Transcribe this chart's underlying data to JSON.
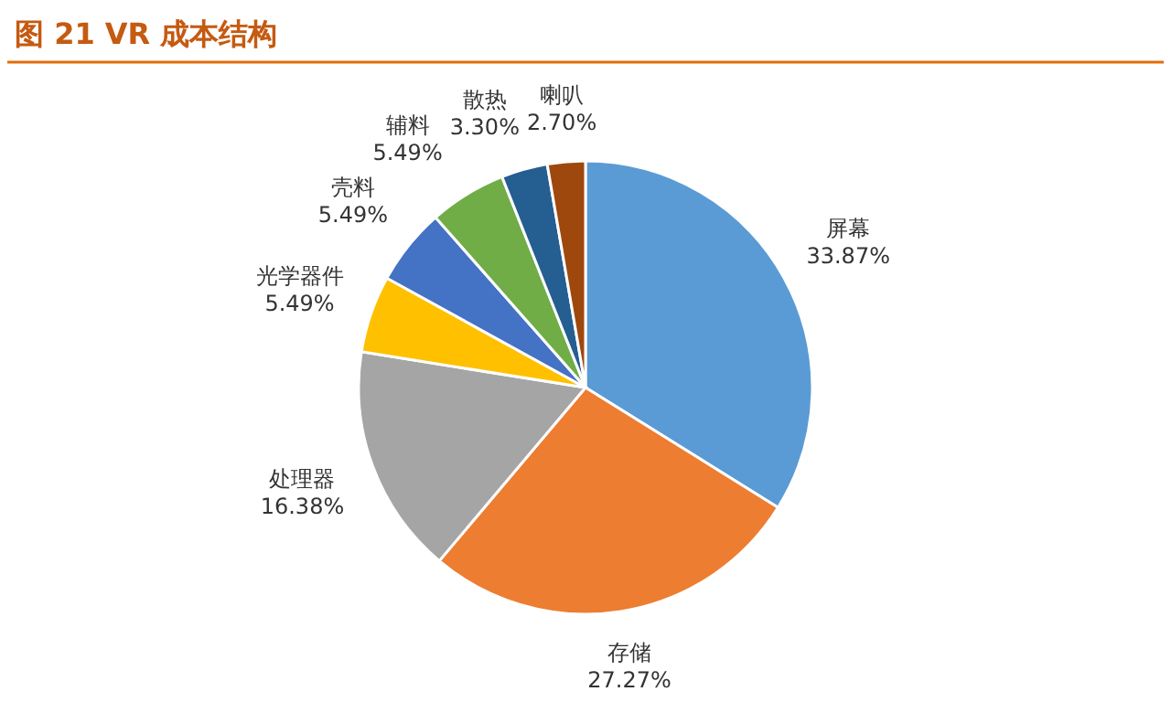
{
  "chart_data": {
    "type": "pie",
    "title": "图 21 VR 成本结构",
    "categories": [
      "屏幕",
      "存储",
      "处理器",
      "光学器件",
      "壳料",
      "辅料",
      "散热",
      "喇叭"
    ],
    "values": [
      33.87,
      27.27,
      16.38,
      5.49,
      5.49,
      5.49,
      3.3,
      2.7
    ],
    "value_labels": [
      "33.87%",
      "27.27%",
      "16.38%",
      "5.49%",
      "5.49%",
      "5.49%",
      "3.30%",
      "2.70%"
    ],
    "colors": [
      "#5b9bd5",
      "#ed7d31",
      "#a5a5a5",
      "#ffc000",
      "#4472c4",
      "#70ad47",
      "#255e91",
      "#9e480e"
    ]
  }
}
